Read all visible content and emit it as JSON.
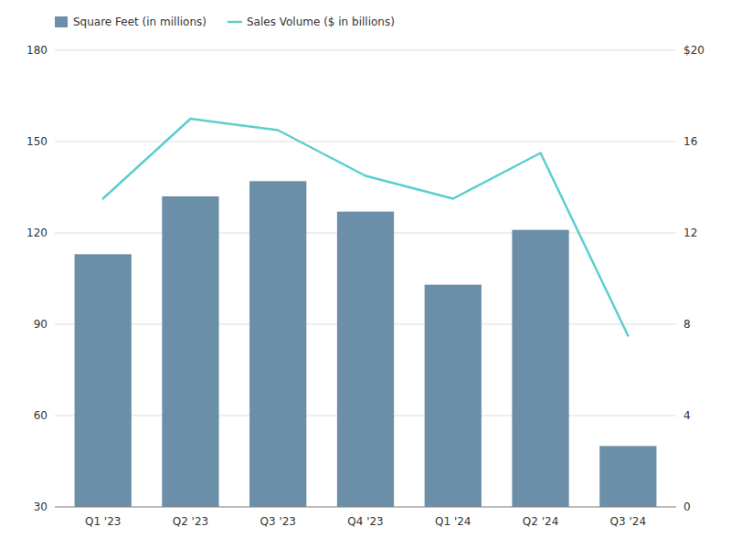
{
  "chart_data": {
    "type": "bar",
    "categories": [
      "Q1 '23",
      "Q2 '23",
      "Q3 '23",
      "Q4 '23",
      "Q1 '24",
      "Q2 '24",
      "Q3 '24"
    ],
    "series": [
      {
        "name": "Square Feet (in millions)",
        "type": "bar",
        "color": "#6b8fa8",
        "values": [
          113,
          132,
          137,
          127,
          103,
          121,
          50
        ]
      },
      {
        "name": "Sales Volume ($ in billions)",
        "type": "line",
        "color": "#5ccece",
        "axis": "y2",
        "values": [
          13.5,
          17.0,
          16.5,
          14.5,
          13.5,
          15.5,
          7.5
        ]
      }
    ],
    "ylim": [
      30,
      180
    ],
    "yticks": [
      30,
      60,
      90,
      120,
      150,
      180
    ],
    "y2lim": [
      0,
      20
    ],
    "y2ticks": [
      0,
      4,
      8,
      12,
      16,
      {
        "value": 20,
        "label": "$20"
      }
    ],
    "grid": true,
    "legend": "top-left"
  }
}
